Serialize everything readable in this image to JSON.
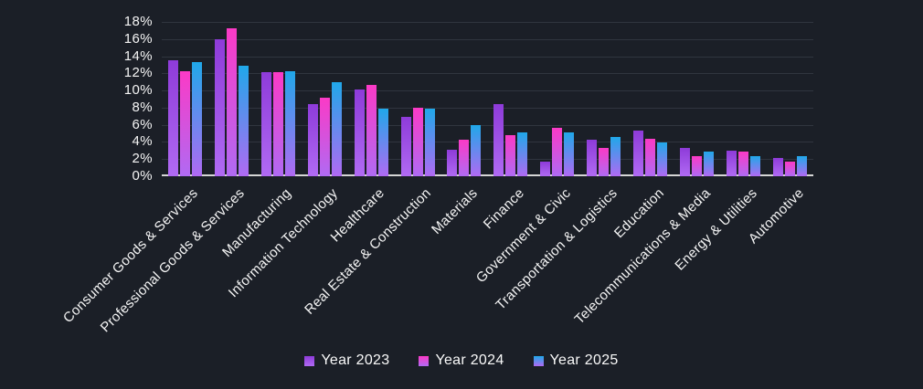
{
  "chart_data": {
    "type": "bar",
    "title": "",
    "xlabel": "",
    "ylabel": "",
    "ylim": [
      0,
      18
    ],
    "ytick_step": 2,
    "ytick_labels": [
      "0%",
      "2%",
      "4%",
      "6%",
      "8%",
      "10%",
      "12%",
      "14%",
      "16%",
      "18%"
    ],
    "grid": true,
    "legend_position": "bottom",
    "categories": [
      "Consumer Goods & Services",
      "Professional Goods & Services",
      "Manufacturing",
      "Information Technology",
      "Healthcare",
      "Real Estate & Construction",
      "Materials",
      "Finance",
      "Government & Civic",
      "Transportation & Logistics",
      "Education",
      "Telecommunications & Media",
      "Energy & Utilities",
      "Automotive"
    ],
    "series": [
      {
        "name": "Year 2023",
        "color_top": "#8e3bd9",
        "color_bottom": "#b06af3",
        "values": [
          13.5,
          16.0,
          12.2,
          8.4,
          10.1,
          6.9,
          3.1,
          8.4,
          1.7,
          4.3,
          5.3,
          3.3,
          3.0,
          2.1
        ]
      },
      {
        "name": "Year 2024",
        "color_top": "#fb3ac6",
        "color_bottom": "#b06af3",
        "values": [
          12.3,
          17.3,
          12.2,
          9.2,
          10.7,
          8.0,
          4.3,
          4.8,
          5.6,
          3.3,
          4.4,
          2.4,
          2.9,
          1.7
        ]
      },
      {
        "name": "Year 2025",
        "color_top": "#20a8e9",
        "color_bottom": "#b06af3",
        "values": [
          13.3,
          12.9,
          12.3,
          11.0,
          7.9,
          7.9,
          6.0,
          5.1,
          5.1,
          4.6,
          3.9,
          2.9,
          2.3,
          2.3
        ]
      }
    ]
  },
  "colors": {
    "background": "#1b1f27",
    "gridline": "#30353f",
    "axis_line": "#d6d6d6",
    "text": "#f5f5f5"
  }
}
